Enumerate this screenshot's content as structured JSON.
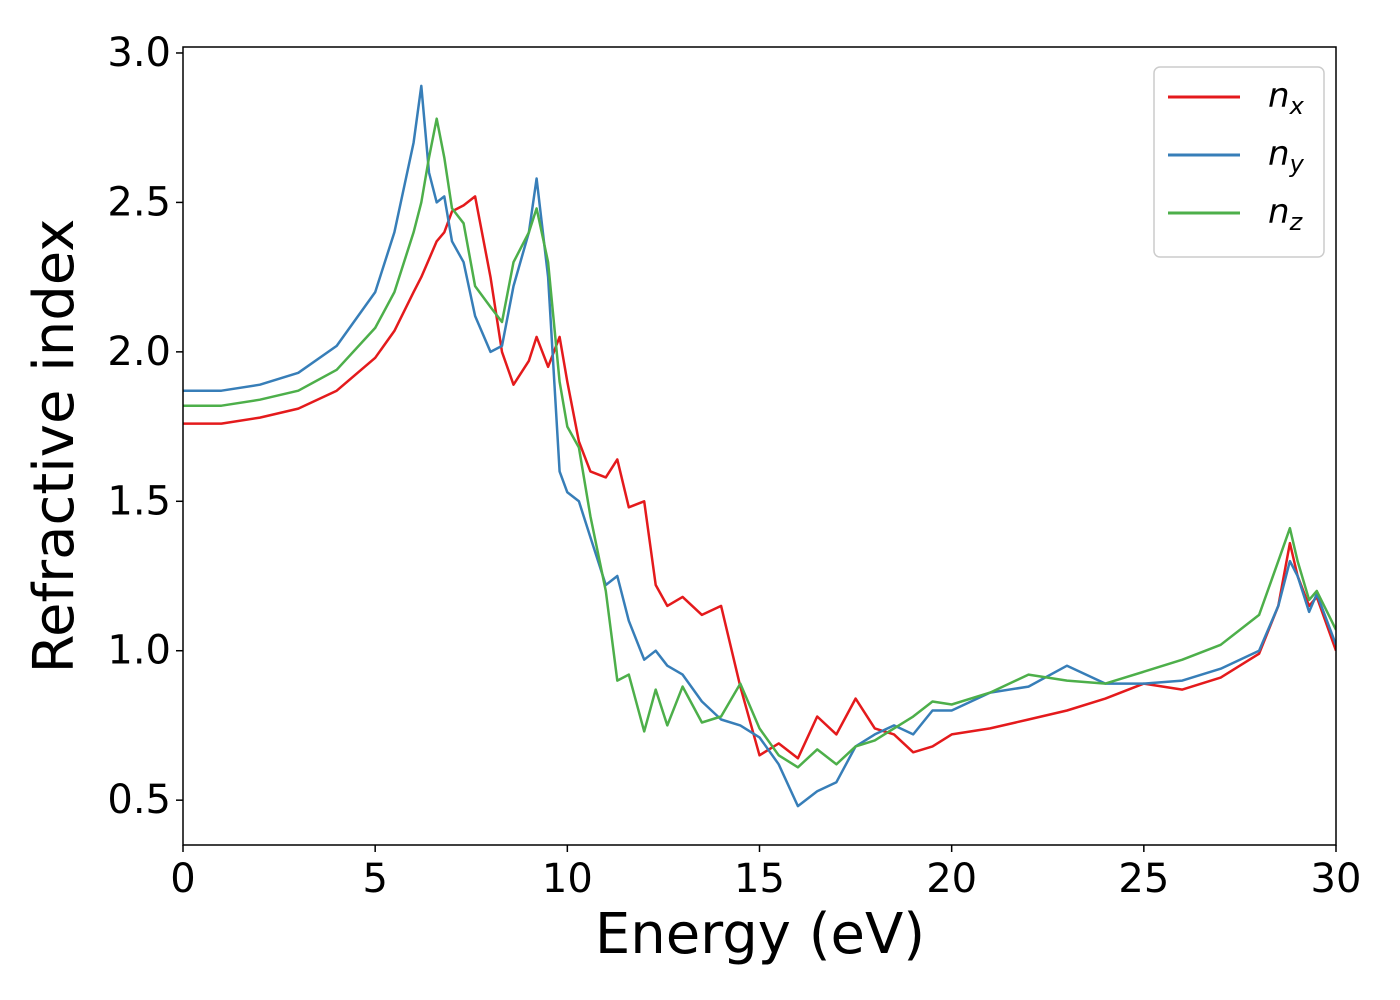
{
  "chart_data": {
    "type": "line",
    "xlabel": "Energy (eV)",
    "ylabel": "Refractive index",
    "x": [
      0,
      1,
      2,
      3,
      4,
      5,
      5.5,
      6,
      6.2,
      6.4,
      6.6,
      6.8,
      7,
      7.3,
      7.6,
      8,
      8.3,
      8.6,
      9,
      9.2,
      9.5,
      9.8,
      10,
      10.3,
      10.6,
      11,
      11.3,
      11.6,
      12,
      12.3,
      12.6,
      13,
      13.5,
      14,
      14.5,
      15,
      15.5,
      16,
      16.5,
      17,
      17.5,
      18,
      18.5,
      19,
      19.5,
      20,
      21,
      22,
      23,
      24,
      25,
      26,
      27,
      28,
      28.5,
      28.8,
      29,
      29.3,
      29.5,
      30
    ],
    "series": [
      {
        "name": "nx",
        "color": "#e41a1c",
        "values": [
          1.76,
          1.76,
          1.78,
          1.81,
          1.87,
          1.98,
          2.07,
          2.2,
          2.25,
          2.31,
          2.37,
          2.4,
          2.47,
          2.49,
          2.52,
          2.25,
          2.0,
          1.89,
          1.97,
          2.05,
          1.95,
          2.05,
          1.9,
          1.7,
          1.6,
          1.58,
          1.64,
          1.48,
          1.5,
          1.22,
          1.15,
          1.18,
          1.12,
          1.15,
          0.88,
          0.65,
          0.69,
          0.64,
          0.78,
          0.72,
          0.84,
          0.74,
          0.72,
          0.66,
          0.68,
          0.72,
          0.74,
          0.77,
          0.8,
          0.84,
          0.89,
          0.87,
          0.91,
          0.99,
          1.15,
          1.36,
          1.25,
          1.15,
          1.18,
          1.0
        ]
      },
      {
        "name": "ny",
        "color": "#377eb8",
        "values": [
          1.87,
          1.87,
          1.89,
          1.93,
          2.02,
          2.2,
          2.4,
          2.7,
          2.89,
          2.6,
          2.5,
          2.52,
          2.37,
          2.3,
          2.12,
          2.0,
          2.02,
          2.22,
          2.4,
          2.58,
          2.25,
          1.6,
          1.53,
          1.5,
          1.38,
          1.22,
          1.25,
          1.1,
          0.97,
          1.0,
          0.95,
          0.92,
          0.83,
          0.77,
          0.75,
          0.71,
          0.62,
          0.48,
          0.53,
          0.56,
          0.68,
          0.72,
          0.75,
          0.72,
          0.8,
          0.8,
          0.86,
          0.88,
          0.95,
          0.89,
          0.89,
          0.9,
          0.94,
          1.0,
          1.15,
          1.3,
          1.25,
          1.13,
          1.19,
          1.02
        ]
      },
      {
        "name": "nz",
        "color": "#4daf4a",
        "values": [
          1.82,
          1.82,
          1.84,
          1.87,
          1.94,
          2.08,
          2.2,
          2.4,
          2.5,
          2.65,
          2.78,
          2.65,
          2.48,
          2.43,
          2.22,
          2.15,
          2.1,
          2.3,
          2.4,
          2.48,
          2.3,
          1.9,
          1.75,
          1.68,
          1.45,
          1.2,
          0.9,
          0.92,
          0.73,
          0.87,
          0.75,
          0.88,
          0.76,
          0.78,
          0.89,
          0.74,
          0.65,
          0.61,
          0.67,
          0.62,
          0.68,
          0.7,
          0.74,
          0.78,
          0.83,
          0.82,
          0.86,
          0.92,
          0.9,
          0.89,
          0.93,
          0.97,
          1.02,
          1.12,
          1.3,
          1.41,
          1.3,
          1.17,
          1.2,
          1.07
        ]
      }
    ],
    "xlim": [
      0,
      30
    ],
    "xticks": [
      0,
      5,
      10,
      15,
      20,
      25,
      30
    ],
    "ylim": [
      0.35,
      3.02
    ],
    "yticks": [
      0.5,
      {
        "value": 1,
        "label": "1.0"
      },
      1.5,
      {
        "value": 2,
        "label": "2.0"
      },
      2.5,
      {
        "value": 3,
        "label": "3.0"
      }
    ],
    "grid": false,
    "legend": "upper right"
  }
}
